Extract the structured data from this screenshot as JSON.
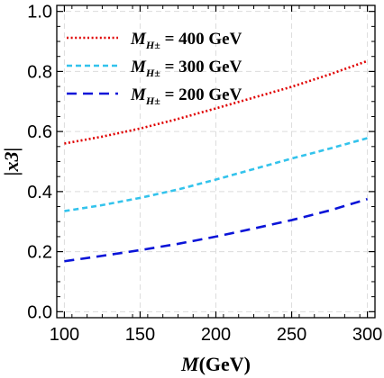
{
  "chart_data": {
    "type": "line",
    "title": "",
    "xlabel": "M",
    "xlabel_unit": "(GeV)",
    "ylabel": "|x3|",
    "xlim": [
      95,
      305
    ],
    "ylim": [
      -0.02,
      1.02
    ],
    "x_ticks": [
      100,
      150,
      200,
      250,
      300
    ],
    "y_ticks": [
      0.0,
      0.2,
      0.4,
      0.6,
      0.8,
      1.0
    ],
    "x_tick_labels": [
      "100",
      "150",
      "200",
      "250",
      "300"
    ],
    "y_tick_labels": [
      "0.0",
      "0.2",
      "0.4",
      "0.6",
      "0.8",
      "1.0"
    ],
    "grid": true,
    "legend_position": "top-left",
    "series": [
      {
        "name": "M_{H±} = 400 GeV",
        "legend_parts": {
          "main": "M",
          "sub": "H±",
          "rest": " = 400 GeV"
        },
        "color": "#e00000",
        "dash": "dotted",
        "x": [
          100,
          125,
          150,
          175,
          200,
          225,
          250,
          275,
          300
        ],
        "y": [
          0.56,
          0.583,
          0.61,
          0.642,
          0.677,
          0.713,
          0.749,
          0.79,
          0.835
        ]
      },
      {
        "name": "M_{H±} = 300 GeV",
        "legend_parts": {
          "main": "M",
          "sub": "H±",
          "rest": " = 300 GeV"
        },
        "color": "#33c3ec",
        "dash": "short-dash",
        "x": [
          100,
          125,
          150,
          175,
          200,
          225,
          250,
          275,
          300
        ],
        "y": [
          0.335,
          0.355,
          0.379,
          0.407,
          0.44,
          0.475,
          0.51,
          0.543,
          0.578
        ]
      },
      {
        "name": "M_{H±} = 200 GeV",
        "legend_parts": {
          "main": "M",
          "sub": "H±",
          "rest": " = 200 GeV"
        },
        "color": "#0a14d8",
        "dash": "long-dash",
        "x": [
          100,
          125,
          150,
          175,
          200,
          225,
          250,
          275,
          300
        ],
        "y": [
          0.168,
          0.186,
          0.205,
          0.226,
          0.25,
          0.277,
          0.305,
          0.337,
          0.375
        ]
      }
    ]
  }
}
